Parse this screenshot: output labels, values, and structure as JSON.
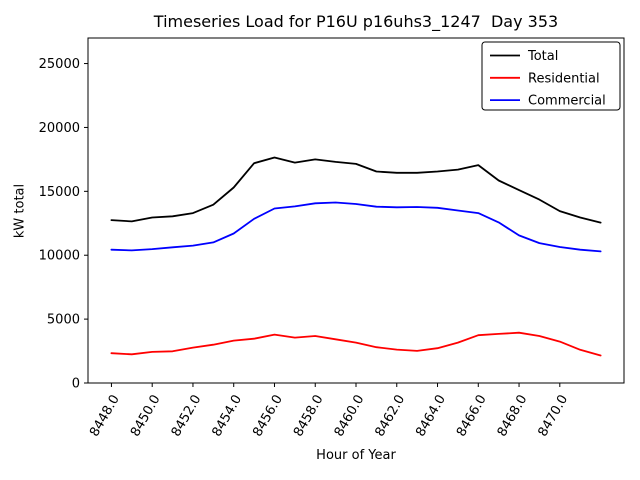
{
  "chart_data": {
    "type": "line",
    "title": "Timeseries Load for P16U p16uhs3_1247  Day 353",
    "xlabel": "Hour of Year",
    "ylabel": "kW total",
    "x": [
      8448,
      8449,
      8450,
      8451,
      8452,
      8453,
      8454,
      8455,
      8456,
      8457,
      8458,
      8459,
      8460,
      8461,
      8462,
      8463,
      8464,
      8465,
      8466,
      8467,
      8468,
      8469,
      8470,
      8471,
      8472
    ],
    "series": [
      {
        "name": "Total",
        "color": "#000000",
        "values": [
          12750,
          12650,
          12950,
          13050,
          13300,
          13950,
          15300,
          17200,
          17650,
          17250,
          17500,
          17300,
          17150,
          16550,
          16450,
          16450,
          16550,
          16700,
          17050,
          15850,
          15100,
          14350,
          13450,
          12950,
          12550
        ]
      },
      {
        "name": "Residential",
        "color": "#ff0000",
        "values": [
          2330,
          2250,
          2430,
          2480,
          2770,
          3000,
          3320,
          3470,
          3790,
          3550,
          3680,
          3420,
          3160,
          2800,
          2610,
          2510,
          2720,
          3160,
          3740,
          3840,
          3940,
          3680,
          3240,
          2600,
          2150
        ]
      },
      {
        "name": "Commercial",
        "color": "#0000ff",
        "values": [
          10430,
          10380,
          10480,
          10620,
          10750,
          11000,
          11700,
          12850,
          13660,
          13820,
          14060,
          14130,
          14010,
          13800,
          13750,
          13770,
          13710,
          13500,
          13300,
          12570,
          11550,
          10950,
          10640,
          10430,
          10300
        ]
      }
    ],
    "xlim": [
      8446.85,
      8473.15
    ],
    "ylim": [
      0,
      27000
    ],
    "xtick_values": [
      8448,
      8450,
      8452,
      8454,
      8456,
      8458,
      8460,
      8462,
      8464,
      8466,
      8468,
      8470
    ],
    "xtick_labels": [
      "8448.0",
      "8450.0",
      "8452.0",
      "8454.0",
      "8456.0",
      "8458.0",
      "8460.0",
      "8462.0",
      "8464.0",
      "8466.0",
      "8468.0",
      "8470.0"
    ],
    "ytick_values": [
      0,
      5000,
      10000,
      15000,
      20000,
      25000
    ],
    "ytick_labels": [
      "0",
      "5000",
      "10000",
      "15000",
      "20000",
      "25000"
    ],
    "grid": false,
    "legend_position": "upper right",
    "xtick_rotation_deg": 60
  }
}
